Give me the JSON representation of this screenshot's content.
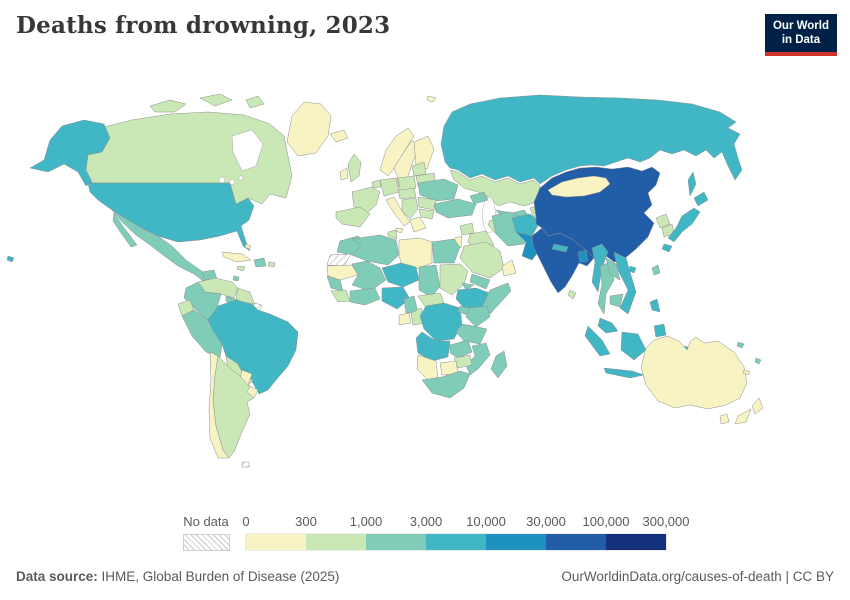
{
  "header": {
    "title": "Deaths from drowning, 2023",
    "logo_line1": "Our World",
    "logo_line2": "in Data",
    "logo_bg": "#002147",
    "logo_bar": "#d0342c"
  },
  "legend": {
    "no_data_label": "No data",
    "ticks": [
      "0",
      "300",
      "1,000",
      "3,000",
      "10,000",
      "30,000",
      "100,000",
      "300,000"
    ],
    "segment_colors": [
      "#f7f3c3",
      "#c9e8b5",
      "#7fccb9",
      "#41b6c4",
      "#1d91c0",
      "#225ea8",
      "#15307c"
    ]
  },
  "footer": {
    "source_label": "Data source:",
    "source_text": "IHME, Global Burden of Disease (2025)",
    "right": "OurWorldinData.org/causes-of-death | CC BY"
  },
  "map": {
    "colors": {
      "c1": "#f7f3c3",
      "c2": "#c9e8b5",
      "c3": "#7fccb9",
      "c4": "#41b6c4",
      "c5": "#1d91c0",
      "c6": "#225ea8",
      "c7": "#15307c"
    },
    "countries": {
      "greenland": "c1",
      "canada": "c2",
      "arctic_islands_1": "c2",
      "arctic_islands_2": "c2",
      "arctic_islands_3": "c2",
      "alaska": "c4",
      "usa": "c4",
      "hawaii": "c4",
      "mexico": "c3",
      "baja": "c3",
      "yucatan": "c3",
      "guatemala": "c3",
      "honduras_nicaragua": "c2",
      "costa_rica_panama": "c3",
      "cuba": "c1",
      "hispaniola": "c3",
      "jamaica": "c2",
      "puerto_rico": "c2",
      "bahamas": "c1",
      "trinidad": "c3",
      "venezuela": "c2",
      "colombia": "c3",
      "guyanas": "c2",
      "french_guiana": "no_data",
      "ecuador": "c2",
      "peru": "c3",
      "brazil": "c4",
      "bolivia": "c2",
      "paraguay": "c1",
      "chile": "c1",
      "argentina": "c2",
      "uruguay": "c1",
      "falkland": "no_data",
      "iceland": "c1",
      "norway": "c1",
      "sweden": "c1",
      "finland": "c1",
      "denmark": "c1",
      "uk": "c2",
      "ireland": "c1",
      "spain": "c2",
      "france": "c2",
      "benelux": "c2",
      "germany": "c2",
      "italy": "c1",
      "sicily": "c1",
      "central_europe": "c2",
      "poland": "c2",
      "baltics": "c2",
      "belarus": "c2",
      "ukraine": "c3",
      "romania": "c2",
      "balkans": "c2",
      "greece": "c1",
      "bulgaria": "c2",
      "svalbard": "c1",
      "russia": "c4",
      "sakhalin": "c4",
      "kazakhstan": "c2",
      "uzbekistan": "c3",
      "turkmenistan": "c2",
      "kyrgyzstan": "c2",
      "caucasus": "c3",
      "turkey": "c3",
      "syria": "c2",
      "levant": "c1",
      "iraq": "c2",
      "iran": "c3",
      "saudi_arabia": "c2",
      "yemen": "c3",
      "oman": "c1",
      "morocco": "c3",
      "western_sahara": "no_data",
      "mauritania": "c1",
      "algeria": "c3",
      "tunisia": "c2",
      "libya": "c1",
      "egypt": "c3",
      "mali": "c3",
      "senegal": "c3",
      "guinea": "c2",
      "ghana_cote": "c3",
      "niger": "c4",
      "nigeria": "c4",
      "chad": "c3",
      "sudan": "c2",
      "eritrea": "c3",
      "ethiopia": "c4",
      "somalia": "c3",
      "cameroon": "c3",
      "car": "c2",
      "gabon": "c1",
      "congo": "c2",
      "drc": "c4",
      "uganda": "c3",
      "kenya": "c3",
      "tanzania": "c3",
      "angola": "c4",
      "zambia": "c3",
      "mozambique": "c3",
      "zimbabwe": "c2",
      "botswana": "c1",
      "namibia": "c1",
      "south_africa": "c3",
      "madagascar": "c3",
      "afghanistan": "c4",
      "pakistan": "c5",
      "india": "c6",
      "nepal": "c4",
      "bangladesh": "c5",
      "sri_lanka": "c2",
      "china": "c6",
      "mongolia": "c1",
      "north_korea": "c2",
      "south_korea": "c2",
      "japan_hokkaido": "c4",
      "japan_honshu": "c4",
      "japan_kyushu": "c4",
      "taiwan": "c3",
      "hainan": "c4",
      "myanmar": "c4",
      "thailand": "c3",
      "laos": "c3",
      "vietnam": "c4",
      "cambodia": "c3",
      "malaysia": "c4",
      "sumatra": "c4",
      "java": "c4",
      "borneo": "c4",
      "sulawesi": "c4",
      "west_papua": "c4",
      "png": "c3",
      "philippines_luzon": "c4",
      "philippines_mindanao": "c4",
      "australia": "c1",
      "tasmania": "c1",
      "nz_north": "c1",
      "nz_south": "c1",
      "solomon": "c3",
      "fiji": "c3",
      "new_caledonia": "c1"
    }
  },
  "chart_data": {
    "type": "heatmap",
    "subtype": "world-choropleth-map",
    "title": "Deaths from drowning, 2023",
    "unit": "deaths",
    "scale_type": "log-binned",
    "bin_edges": [
      "0",
      "300",
      "1,000",
      "3,000",
      "10,000",
      "30,000",
      "100,000",
      "300,000"
    ],
    "bin_colors": [
      "#f7f3c3",
      "#c9e8b5",
      "#7fccb9",
      "#41b6c4",
      "#1d91c0",
      "#225ea8",
      "#15307c"
    ],
    "legend_position": "bottom",
    "no_data": [
      "French Guiana",
      "Western Sahara",
      "Falkland Islands"
    ],
    "countries_by_bin": {
      "0–300": [
        "Greenland",
        "Iceland",
        "Norway",
        "Sweden",
        "Finland",
        "Denmark",
        "Ireland",
        "Italy",
        "Greece",
        "Mongolia",
        "Oman",
        "Libya",
        "Mauritania",
        "Gabon",
        "Namibia",
        "Botswana",
        "Chile",
        "Paraguay",
        "Uruguay",
        "Cuba",
        "Australia",
        "New Zealand"
      ],
      "300–1,000": [
        "Canada",
        "United Kingdom",
        "France",
        "Spain",
        "Germany",
        "Poland",
        "Belarus",
        "Romania",
        "Venezuela",
        "Guyana",
        "Suriname",
        "Ecuador",
        "Bolivia",
        "Argentina",
        "Saudi Arabia",
        "Iraq",
        "Syria",
        "Kazakhstan",
        "Turkmenistan",
        "Sudan",
        "Central African Republic",
        "Congo",
        "Zimbabwe",
        "Tunisia",
        "North Korea",
        "South Korea",
        "Sri Lanka"
      ],
      "1,000–3,000": [
        "Mexico",
        "Guatemala",
        "Colombia",
        "Peru",
        "Ukraine",
        "Turkey",
        "Iran",
        "Yemen",
        "Morocco",
        "Algeria",
        "Egypt",
        "Mali",
        "Chad",
        "Senegal",
        "Ghana",
        "Côte d'Ivoire",
        "Cameroon",
        "Eritrea",
        "Somalia",
        "Kenya",
        "Uganda",
        "Tanzania",
        "Zambia",
        "Mozambique",
        "South Africa",
        "Madagascar",
        "Uzbekistan",
        "Thailand",
        "Laos",
        "Cambodia",
        "Taiwan",
        "Papua New Guinea",
        "Haiti",
        "Dominican Republic"
      ],
      "3,000–10,000": [
        "United States",
        "Brazil",
        "Russia",
        "Niger",
        "Nigeria",
        "Democratic Republic of Congo",
        "Angola",
        "Ethiopia",
        "Afghanistan",
        "Nepal",
        "Myanmar",
        "Vietnam",
        "Malaysia",
        "Indonesia",
        "Philippines",
        "Japan"
      ],
      "10,000–30,000": [
        "Pakistan",
        "Bangladesh"
      ],
      "30,000–100,000": [
        "China",
        "India"
      ]
    },
    "source": "IHME, Global Burden of Disease (2025)"
  }
}
